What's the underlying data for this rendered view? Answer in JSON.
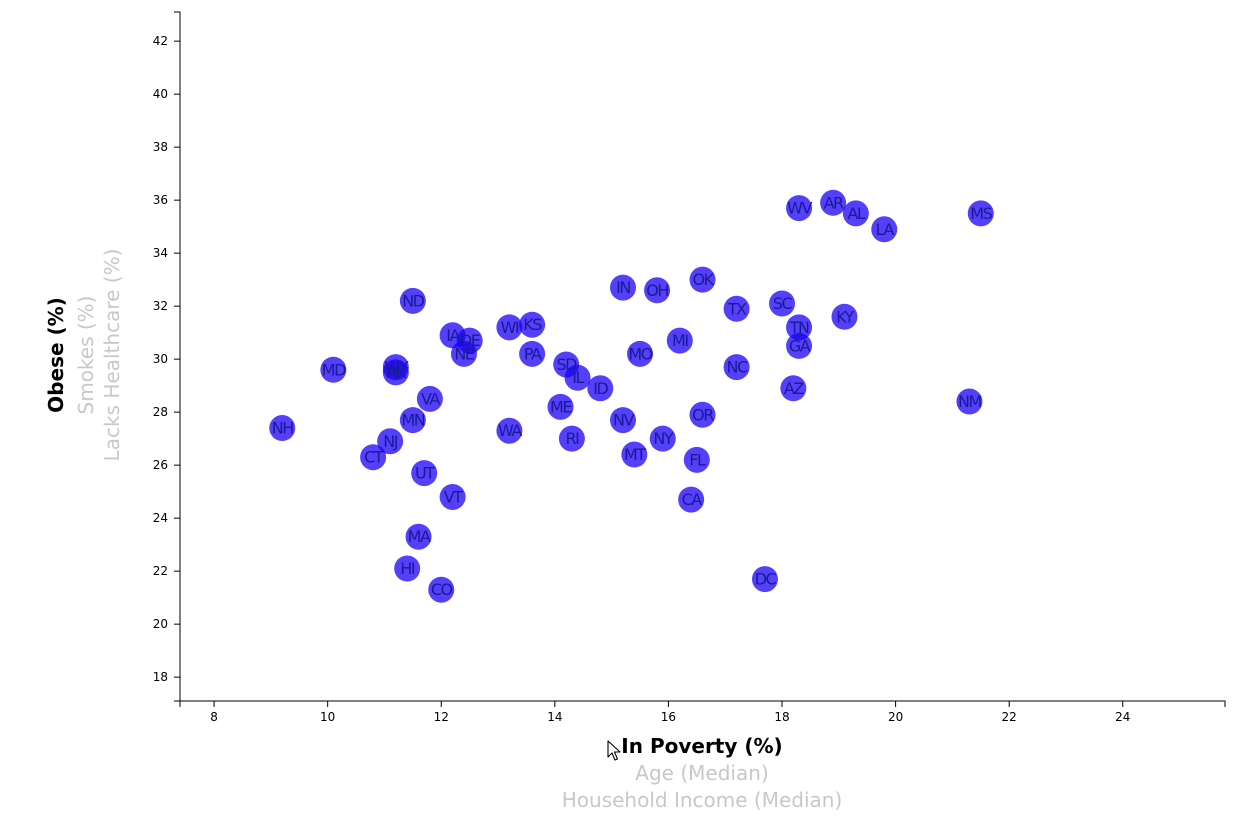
{
  "chart_data": {
    "type": "scatter",
    "x_axis": {
      "range": [
        7.4,
        25.8
      ],
      "ticks": [
        8,
        10,
        12,
        14,
        16,
        18,
        20,
        22,
        24
      ],
      "labels": [
        {
          "text": "In Poverty (%)",
          "active": true
        },
        {
          "text": "Age (Median)",
          "active": false
        },
        {
          "text": "Household Income (Median)",
          "active": false
        }
      ]
    },
    "y_axis": {
      "range": [
        17.1,
        43.1
      ],
      "ticks": [
        18,
        20,
        22,
        24,
        26,
        28,
        30,
        32,
        34,
        36,
        38,
        40,
        42
      ],
      "labels": [
        {
          "text": "Obese (%)",
          "active": true
        },
        {
          "text": "Smokes (%)",
          "active": false
        },
        {
          "text": "Lacks Healthcare (%)",
          "active": false
        }
      ]
    },
    "points": [
      {
        "abbr": "NH",
        "x": 9.2,
        "y": 27.4
      },
      {
        "abbr": "MD",
        "x": 10.1,
        "y": 29.6
      },
      {
        "abbr": "CT",
        "x": 10.8,
        "y": 26.3
      },
      {
        "abbr": "NJ",
        "x": 11.1,
        "y": 26.9
      },
      {
        "abbr": "WY",
        "x": 11.2,
        "y": 29.7
      },
      {
        "abbr": "AK",
        "x": 11.2,
        "y": 29.5
      },
      {
        "abbr": "HI",
        "x": 11.4,
        "y": 22.1
      },
      {
        "abbr": "ND",
        "x": 11.5,
        "y": 32.2
      },
      {
        "abbr": "MN",
        "x": 11.5,
        "y": 27.7
      },
      {
        "abbr": "MA",
        "x": 11.6,
        "y": 23.3
      },
      {
        "abbr": "UT",
        "x": 11.7,
        "y": 25.7
      },
      {
        "abbr": "VA",
        "x": 11.8,
        "y": 28.5
      },
      {
        "abbr": "CO",
        "x": 12.0,
        "y": 21.3
      },
      {
        "abbr": "IA",
        "x": 12.2,
        "y": 30.9
      },
      {
        "abbr": "VT",
        "x": 12.2,
        "y": 24.8
      },
      {
        "abbr": "DE",
        "x": 12.5,
        "y": 30.7
      },
      {
        "abbr": "NE",
        "x": 12.4,
        "y": 30.2
      },
      {
        "abbr": "WA",
        "x": 13.2,
        "y": 27.3
      },
      {
        "abbr": "WI",
        "x": 13.2,
        "y": 31.2
      },
      {
        "abbr": "KS",
        "x": 13.6,
        "y": 31.3
      },
      {
        "abbr": "PA",
        "x": 13.6,
        "y": 30.2
      },
      {
        "abbr": "ME",
        "x": 14.1,
        "y": 28.2
      },
      {
        "abbr": "SD",
        "x": 14.2,
        "y": 29.8
      },
      {
        "abbr": "RI",
        "x": 14.3,
        "y": 27.0
      },
      {
        "abbr": "IL",
        "x": 14.4,
        "y": 29.3
      },
      {
        "abbr": "ID",
        "x": 14.8,
        "y": 28.9
      },
      {
        "abbr": "IN",
        "x": 15.2,
        "y": 32.7
      },
      {
        "abbr": "NV",
        "x": 15.2,
        "y": 27.7
      },
      {
        "abbr": "MT",
        "x": 15.4,
        "y": 26.4
      },
      {
        "abbr": "MO",
        "x": 15.5,
        "y": 30.2
      },
      {
        "abbr": "OH",
        "x": 15.8,
        "y": 32.6
      },
      {
        "abbr": "NY",
        "x": 15.9,
        "y": 27.0
      },
      {
        "abbr": "MI",
        "x": 16.2,
        "y": 30.7
      },
      {
        "abbr": "CA",
        "x": 16.4,
        "y": 24.7
      },
      {
        "abbr": "FL",
        "x": 16.5,
        "y": 26.2
      },
      {
        "abbr": "OK",
        "x": 16.6,
        "y": 33.0
      },
      {
        "abbr": "OR",
        "x": 16.6,
        "y": 27.9
      },
      {
        "abbr": "NC",
        "x": 17.2,
        "y": 29.7
      },
      {
        "abbr": "TX",
        "x": 17.2,
        "y": 31.9
      },
      {
        "abbr": "DC",
        "x": 17.7,
        "y": 21.7
      },
      {
        "abbr": "SC",
        "x": 18.0,
        "y": 32.1
      },
      {
        "abbr": "AZ",
        "x": 18.2,
        "y": 28.9
      },
      {
        "abbr": "TN",
        "x": 18.3,
        "y": 31.2
      },
      {
        "abbr": "GA",
        "x": 18.3,
        "y": 30.5
      },
      {
        "abbr": "WV",
        "x": 18.3,
        "y": 35.7
      },
      {
        "abbr": "AR",
        "x": 18.9,
        "y": 35.9
      },
      {
        "abbr": "KY",
        "x": 19.1,
        "y": 31.6
      },
      {
        "abbr": "AL",
        "x": 19.3,
        "y": 35.5
      },
      {
        "abbr": "LA",
        "x": 19.8,
        "y": 34.9
      },
      {
        "abbr": "NM",
        "x": 21.3,
        "y": 28.4
      },
      {
        "abbr": "MS",
        "x": 21.5,
        "y": 35.5
      }
    ],
    "marker_color": "#1a00f5",
    "label_color": "#1a1a99",
    "active_label_color": "#000000",
    "inactive_label_color": "#c8c8c8",
    "grid": false
  }
}
